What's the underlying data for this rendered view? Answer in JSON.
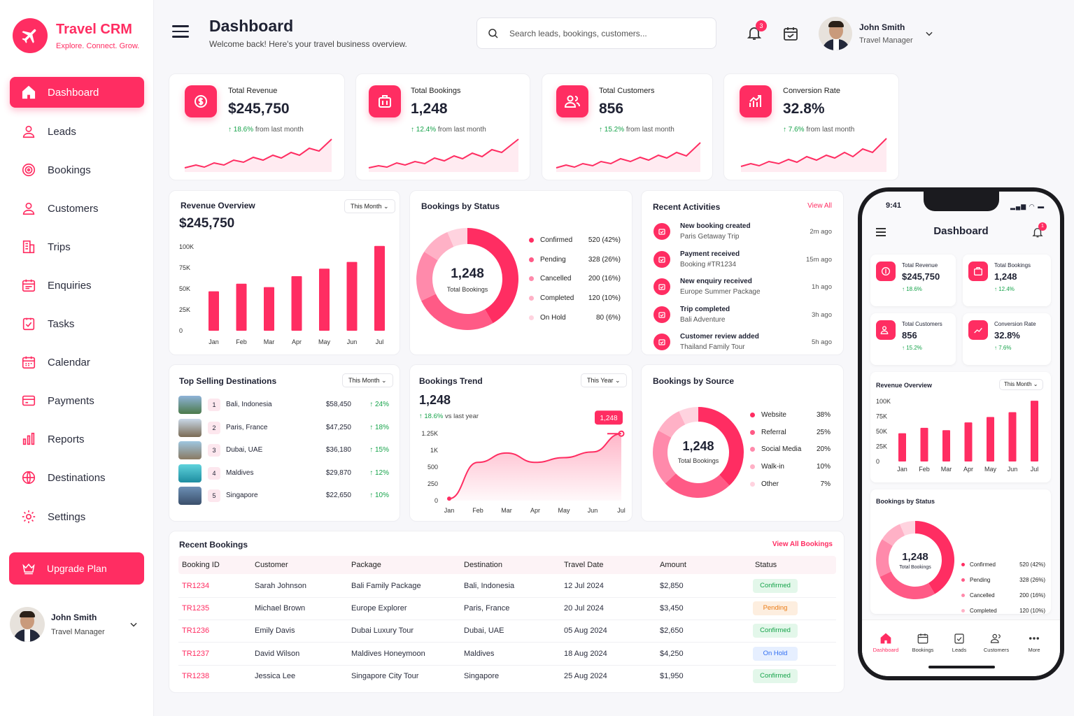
{
  "brand": {
    "name": "Travel CRM",
    "tagline": "Explore. Connect. Grow."
  },
  "colors": {
    "accent": "#ff2d62",
    "positive": "#16a34a"
  },
  "sidebar": {
    "items": [
      {
        "label": "Dashboard",
        "icon": "home-icon",
        "active": true
      },
      {
        "label": "Leads",
        "icon": "user-icon"
      },
      {
        "label": "Bookings",
        "icon": "target-icon"
      },
      {
        "label": "Customers",
        "icon": "user-icon"
      },
      {
        "label": "Trips",
        "icon": "building-icon"
      },
      {
        "label": "Enquiries",
        "icon": "calendar-list-icon"
      },
      {
        "label": "Tasks",
        "icon": "checklist-icon"
      },
      {
        "label": "Calendar",
        "icon": "calendar-icon"
      },
      {
        "label": "Payments",
        "icon": "card-icon"
      },
      {
        "label": "Reports",
        "icon": "bar-chart-icon"
      },
      {
        "label": "Destinations",
        "icon": "globe-icon"
      },
      {
        "label": "Settings",
        "icon": "gear-icon"
      }
    ],
    "upgrade": "Upgrade Plan",
    "user": {
      "name": "John Smith",
      "role": "Travel Manager"
    }
  },
  "header": {
    "title": "Dashboard",
    "subtitle": "Welcome back! Here's your travel business overview.",
    "search_placeholder": "Search leads, bookings, customers...",
    "notif_count": "3",
    "user": {
      "name": "John Smith",
      "role": "Travel Manager"
    }
  },
  "kpis": [
    {
      "label": "Total Revenue",
      "value": "$245,750",
      "change": "18.6%",
      "change_text": "from last month",
      "icon": "dollar-icon"
    },
    {
      "label": "Total Bookings",
      "value": "1,248",
      "change": "12.4%",
      "change_text": "from last month",
      "icon": "briefcase-icon"
    },
    {
      "label": "Total Customers",
      "value": "856",
      "change": "15.2%",
      "change_text": "from last month",
      "icon": "users-icon"
    },
    {
      "label": "Conversion Rate",
      "value": "32.8%",
      "change": "7.6%",
      "change_text": "from last month",
      "icon": "trend-icon"
    }
  ],
  "revenue": {
    "title": "Revenue Overview",
    "filter": "This Month",
    "total": "$245,750"
  },
  "bookings_status": {
    "title": "Bookings by Status",
    "center_value": "1,248",
    "center_label": "Total Bookings",
    "items": [
      {
        "name": "Confirmed",
        "value": "520 (42%)",
        "color": "#ff2d62"
      },
      {
        "name": "Pending",
        "value": "328 (26%)",
        "color": "#ff5a86"
      },
      {
        "name": "Cancelled",
        "value": "200 (16%)",
        "color": "#ff8aab"
      },
      {
        "name": "Completed",
        "value": "120 (10%)",
        "color": "#ffb1c6"
      },
      {
        "name": "On Hold",
        "value": "80 (6%)",
        "color": "#ffd3df"
      }
    ]
  },
  "activities": {
    "title": "Recent Activities",
    "view_all": "View All",
    "items": [
      {
        "title": "New booking created",
        "sub": "Paris Getaway Trip",
        "time": "2m ago"
      },
      {
        "title": "Payment received",
        "sub": "Booking #TR1234",
        "time": "15m ago"
      },
      {
        "title": "New enquiry received",
        "sub": "Europe Summer Package",
        "time": "1h ago"
      },
      {
        "title": "Trip completed",
        "sub": "Bali Adventure",
        "time": "3h ago"
      },
      {
        "title": "Customer review added",
        "sub": "Thailand Family Tour",
        "time": "5h ago"
      }
    ]
  },
  "destinations": {
    "title": "Top Selling Destinations",
    "filter": "This Month",
    "items": [
      {
        "rank": "1",
        "name": "Bali, Indonesia",
        "amount": "$58,450",
        "pct": "24%"
      },
      {
        "rank": "2",
        "name": "Paris, France",
        "amount": "$47,250",
        "pct": "18%"
      },
      {
        "rank": "3",
        "name": "Dubai, UAE",
        "amount": "$36,180",
        "pct": "15%"
      },
      {
        "rank": "4",
        "name": "Maldives",
        "amount": "$29,870",
        "pct": "12%"
      },
      {
        "rank": "5",
        "name": "Singapore",
        "amount": "$22,650",
        "pct": "10%"
      }
    ]
  },
  "trend": {
    "title": "Bookings Trend",
    "filter": "This Year",
    "value": "1,248",
    "change": "18.6%",
    "change_text": "vs last year",
    "tooltip": "1,248"
  },
  "source": {
    "title": "Bookings by Source",
    "center_value": "1,248",
    "center_label": "Total Bookings",
    "items": [
      {
        "name": "Website",
        "value": "38%",
        "color": "#ff2d62"
      },
      {
        "name": "Referral",
        "value": "25%",
        "color": "#ff5a86"
      },
      {
        "name": "Social Media",
        "value": "20%",
        "color": "#ff8aab"
      },
      {
        "name": "Walk-in",
        "value": "10%",
        "color": "#ffb1c6"
      },
      {
        "name": "Other",
        "value": "7%",
        "color": "#ffd3df"
      }
    ]
  },
  "recent_bookings": {
    "title": "Recent Bookings",
    "view_all": "View All Bookings",
    "columns": [
      "Booking ID",
      "Customer",
      "Package",
      "Destination",
      "Travel Date",
      "Amount",
      "Status"
    ],
    "rows": [
      [
        "TR1234",
        "Sarah Johnson",
        "Bali Family Package",
        "Bali, Indonesia",
        "12 Jul 2024",
        "$2,850",
        "Confirmed"
      ],
      [
        "TR1235",
        "Michael Brown",
        "Europe Explorer",
        "Paris, France",
        "20 Jul 2024",
        "$3,450",
        "Pending"
      ],
      [
        "TR1236",
        "Emily Davis",
        "Dubai Luxury Tour",
        "Dubai, UAE",
        "05 Aug 2024",
        "$2,650",
        "Confirmed"
      ],
      [
        "TR1237",
        "David Wilson",
        "Maldives Honeymoon",
        "Maldives",
        "18 Aug 2024",
        "$4,250",
        "On Hold"
      ],
      [
        "TR1238",
        "Jessica Lee",
        "Singapore City Tour",
        "Singapore",
        "25 Aug 2024",
        "$1,950",
        "Confirmed"
      ]
    ]
  },
  "phone": {
    "time": "9:41",
    "title": "Dashboard",
    "notif": "1",
    "kpis": [
      {
        "label": "Total Revenue",
        "value": "$245,750",
        "change": "18.6%"
      },
      {
        "label": "Total Bookings",
        "value": "1,248",
        "change": "12.4%"
      },
      {
        "label": "Total Customers",
        "value": "856",
        "change": "15.2%"
      },
      {
        "label": "Conversion Rate",
        "value": "32.8%",
        "change": "7.6%"
      }
    ],
    "revenue_title": "Revenue Overview",
    "revenue_filter": "This Month",
    "status_title": "Bookings by Status",
    "tabs": [
      "Dashboard",
      "Bookings",
      "Leads",
      "Customers",
      "More"
    ]
  },
  "chart_data": [
    {
      "type": "bar",
      "title": "Revenue Overview",
      "categories": [
        "Jan",
        "Feb",
        "Mar",
        "Apr",
        "May",
        "Jun",
        "Jul"
      ],
      "values": [
        47000,
        56000,
        52000,
        65000,
        74000,
        82000,
        101000
      ],
      "y_ticks": [
        "0",
        "25K",
        "50K",
        "75K",
        "100K"
      ],
      "ylim": [
        0,
        100000
      ]
    },
    {
      "type": "pie",
      "title": "Bookings by Status",
      "labels": [
        "Confirmed",
        "Pending",
        "Cancelled",
        "Completed",
        "On Hold"
      ],
      "values": [
        520,
        328,
        200,
        120,
        80
      ]
    },
    {
      "type": "area",
      "title": "Bookings Trend",
      "categories": [
        "Jan",
        "Feb",
        "Mar",
        "Apr",
        "May",
        "Jun",
        "Jul"
      ],
      "values": [
        30,
        640,
        920,
        640,
        780,
        950,
        1248
      ],
      "y_ticks": [
        "0",
        "250",
        "500",
        "1K",
        "1.25K"
      ],
      "ylim": [
        0,
        1250
      ]
    },
    {
      "type": "pie",
      "title": "Bookings by Source",
      "labels": [
        "Website",
        "Referral",
        "Social Media",
        "Walk-in",
        "Other"
      ],
      "values": [
        38,
        25,
        20,
        10,
        7
      ]
    }
  ]
}
